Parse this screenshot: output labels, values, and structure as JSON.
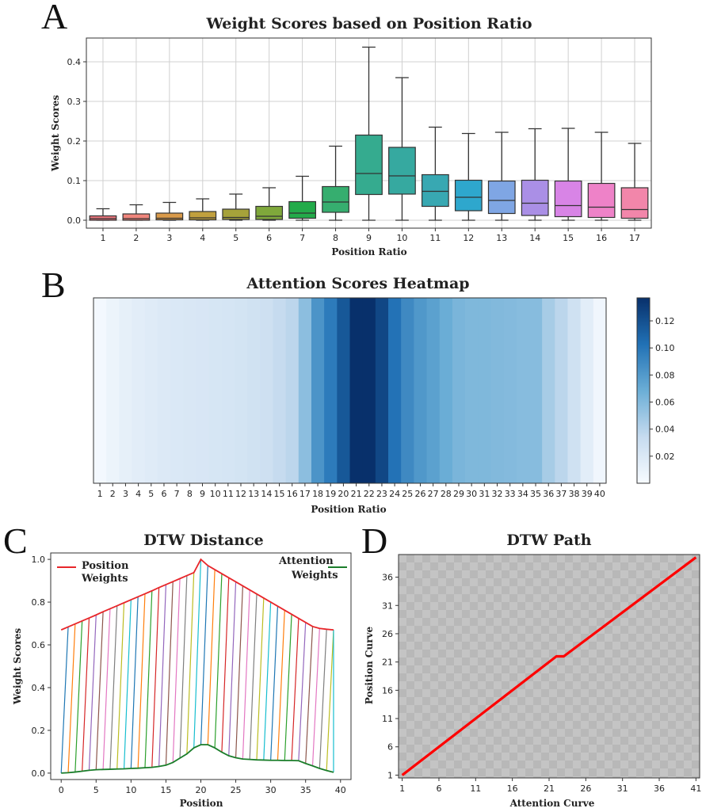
{
  "chart_data": [
    {
      "panel": "A",
      "type": "box",
      "title": "Weight Scores based on Position Ratio",
      "xlabel": "Position Ratio",
      "ylabel": "Weight Scores",
      "ylim": [
        -0.02,
        0.46
      ],
      "yticks": [
        0.0,
        0.1,
        0.2,
        0.3,
        0.4
      ],
      "ytick_labels": [
        "0.0",
        "0.1",
        "0.2",
        "0.3",
        "0.4"
      ],
      "grid": true,
      "categories": [
        "1",
        "2",
        "3",
        "4",
        "5",
        "6",
        "7",
        "8",
        "9",
        "10",
        "11",
        "12",
        "13",
        "14",
        "15",
        "16",
        "17"
      ],
      "colors": [
        "#e8747c",
        "#f0857c",
        "#d99a4a",
        "#c1a03e",
        "#a6a23a",
        "#7fa83b",
        "#23ab4a",
        "#36ae6f",
        "#35ab8f",
        "#36a9a0",
        "#38a8b2",
        "#2ea7cd",
        "#7fa6e4",
        "#aa8fe6",
        "#d884e6",
        "#ee82c8",
        "#f286aa"
      ],
      "boxes": [
        {
          "min": 0.0,
          "q1": 0.0,
          "median": 0.004,
          "q3": 0.011,
          "max": 0.029
        },
        {
          "min": 0.0,
          "q1": 0.0,
          "median": 0.004,
          "q3": 0.016,
          "max": 0.039
        },
        {
          "min": 0.0,
          "q1": 0.001,
          "median": 0.005,
          "q3": 0.018,
          "max": 0.045
        },
        {
          "min": 0.0,
          "q1": 0.001,
          "median": 0.006,
          "q3": 0.022,
          "max": 0.054
        },
        {
          "min": 0.0,
          "q1": 0.002,
          "median": 0.007,
          "q3": 0.028,
          "max": 0.066
        },
        {
          "min": 0.0,
          "q1": 0.002,
          "median": 0.01,
          "q3": 0.035,
          "max": 0.082
        },
        {
          "min": 0.0,
          "q1": 0.005,
          "median": 0.018,
          "q3": 0.047,
          "max": 0.111
        },
        {
          "min": 0.0,
          "q1": 0.02,
          "median": 0.046,
          "q3": 0.085,
          "max": 0.187
        },
        {
          "min": 0.0,
          "q1": 0.065,
          "median": 0.118,
          "q3": 0.215,
          "max": 0.437
        },
        {
          "min": 0.0,
          "q1": 0.066,
          "median": 0.112,
          "q3": 0.184,
          "max": 0.36
        },
        {
          "min": 0.0,
          "q1": 0.035,
          "median": 0.073,
          "q3": 0.115,
          "max": 0.235
        },
        {
          "min": 0.0,
          "q1": 0.024,
          "median": 0.058,
          "q3": 0.101,
          "max": 0.219
        },
        {
          "min": 0.0,
          "q1": 0.017,
          "median": 0.05,
          "q3": 0.099,
          "max": 0.222
        },
        {
          "min": 0.0,
          "q1": 0.012,
          "median": 0.043,
          "q3": 0.101,
          "max": 0.231
        },
        {
          "min": 0.0,
          "q1": 0.009,
          "median": 0.037,
          "q3": 0.099,
          "max": 0.232
        },
        {
          "min": 0.0,
          "q1": 0.007,
          "median": 0.033,
          "q3": 0.093,
          "max": 0.222
        },
        {
          "min": 0.0,
          "q1": 0.005,
          "median": 0.027,
          "q3": 0.082,
          "max": 0.194
        }
      ]
    },
    {
      "panel": "B",
      "type": "heatmap",
      "title": "Attention Scores Heatmap",
      "xlabel": "Position Ratio",
      "categories": [
        "1",
        "2",
        "3",
        "4",
        "5",
        "6",
        "7",
        "8",
        "9",
        "10",
        "11",
        "12",
        "13",
        "14",
        "15",
        "16",
        "17",
        "18",
        "19",
        "20",
        "21",
        "22",
        "23",
        "24",
        "25",
        "26",
        "27",
        "28",
        "29",
        "30",
        "31",
        "32",
        "33",
        "34",
        "35",
        "36",
        "37",
        "38",
        "39",
        "40"
      ],
      "values": [
        0.003,
        0.008,
        0.012,
        0.015,
        0.017,
        0.019,
        0.02,
        0.021,
        0.022,
        0.023,
        0.024,
        0.025,
        0.027,
        0.029,
        0.034,
        0.038,
        0.056,
        0.083,
        0.097,
        0.116,
        0.137,
        0.137,
        0.125,
        0.102,
        0.089,
        0.081,
        0.076,
        0.069,
        0.063,
        0.061,
        0.061,
        0.06,
        0.059,
        0.058,
        0.058,
        0.046,
        0.038,
        0.028,
        0.015,
        0.005
      ],
      "colorbar": {
        "min": 0.0,
        "max": 0.137,
        "ticks": [
          0.02,
          0.04,
          0.06,
          0.08,
          0.1,
          0.12
        ],
        "tick_labels": [
          "0.02",
          "0.04",
          "0.06",
          "0.08",
          "0.10",
          "0.12"
        ],
        "cmap": "Blues"
      }
    },
    {
      "panel": "C",
      "type": "line",
      "title": "DTW Distance",
      "xlabel": "Position",
      "ylabel": "Weight Scores",
      "xlim": [
        -1.5,
        41.5
      ],
      "ylim": [
        -0.03,
        1.03
      ],
      "xticks": [
        0,
        5,
        10,
        15,
        20,
        25,
        30,
        35,
        40
      ],
      "xtick_labels": [
        "0",
        "5",
        "10",
        "15",
        "20",
        "25",
        "30",
        "35",
        "40"
      ],
      "yticks": [
        0.0,
        0.2,
        0.4,
        0.6,
        0.8,
        1.0
      ],
      "ytick_labels": [
        "0.0",
        "0.2",
        "0.4",
        "0.6",
        "0.8",
        "1.0"
      ],
      "series": [
        {
          "name_lines": [
            "Position",
            "Weights"
          ],
          "color": "#e8262a",
          "values": [
            0.67,
            0.684,
            0.698,
            0.712,
            0.726,
            0.74,
            0.755,
            0.769,
            0.783,
            0.797,
            0.811,
            0.825,
            0.839,
            0.853,
            0.868,
            0.882,
            0.896,
            0.91,
            0.924,
            0.938,
            1.0,
            0.971,
            0.952,
            0.933,
            0.914,
            0.895,
            0.876,
            0.857,
            0.838,
            0.819,
            0.8,
            0.781,
            0.762,
            0.743,
            0.724,
            0.705,
            0.686,
            0.677,
            0.673,
            0.67
          ]
        },
        {
          "name_lines": [
            "Attention",
            "Weights"
          ],
          "color": "#1a7d2a",
          "values": [
            0.0,
            0.002,
            0.005,
            0.009,
            0.013,
            0.016,
            0.017,
            0.018,
            0.019,
            0.02,
            0.022,
            0.023,
            0.025,
            0.027,
            0.031,
            0.037,
            0.05,
            0.07,
            0.09,
            0.118,
            0.133,
            0.133,
            0.118,
            0.098,
            0.081,
            0.072,
            0.066,
            0.064,
            0.062,
            0.061,
            0.06,
            0.06,
            0.059,
            0.059,
            0.058,
            0.045,
            0.034,
            0.022,
            0.012,
            0.004
          ]
        }
      ],
      "connection_colors": [
        "#1f77b4",
        "#ff7f0e",
        "#2ca02c",
        "#d62728",
        "#9467bd",
        "#8c564b",
        "#e377c2",
        "#7f7f7f",
        "#bcbd22",
        "#17becf"
      ]
    },
    {
      "panel": "D",
      "type": "line",
      "title": "DTW Path",
      "xlabel": "Attention Curve",
      "ylabel": "Position Curve",
      "xlim": [
        0.5,
        41.5
      ],
      "ylim": [
        0.5,
        40
      ],
      "xticks": [
        1,
        6,
        11,
        16,
        21,
        26,
        31,
        36,
        41
      ],
      "xtick_labels": [
        "1",
        "6",
        "11",
        "16",
        "21",
        "26",
        "31",
        "36",
        "41"
      ],
      "yticks": [
        1,
        6,
        11,
        16,
        21,
        26,
        31,
        36
      ],
      "ytick_labels": [
        "1",
        "6",
        "11",
        "16",
        "21",
        "26",
        "31",
        "36"
      ],
      "path_x": [
        1,
        22,
        23,
        41
      ],
      "path_y": [
        1,
        22,
        22,
        39.5
      ],
      "path_color": "#ff0000"
    }
  ]
}
